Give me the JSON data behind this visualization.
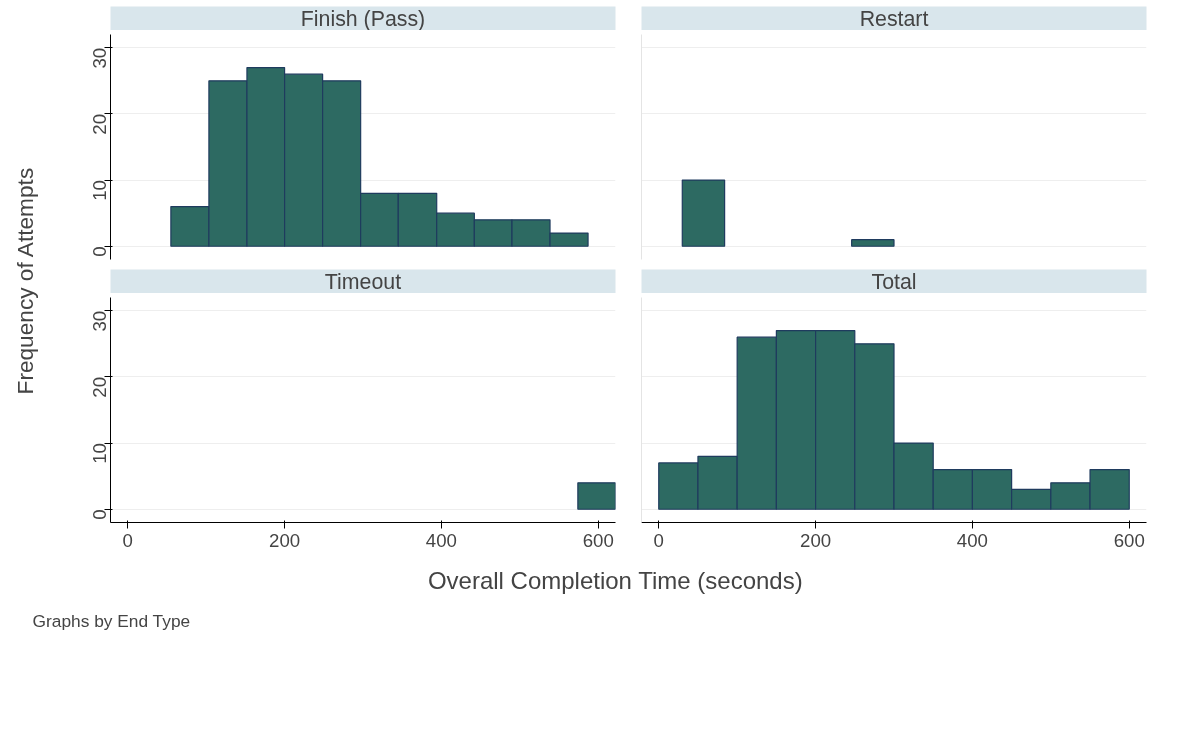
{
  "chart_data": [
    {
      "type": "histogram",
      "title": "Finish (Pass)",
      "ylabel": "Frequency of Attempts",
      "bins": [
        55,
        103.5,
        152,
        200,
        248.5,
        297,
        345,
        394,
        442,
        490,
        538.5,
        587
      ],
      "values": [
        6,
        25,
        27,
        26,
        25,
        8,
        8,
        5,
        4,
        4,
        2
      ],
      "color": "#2d6a62",
      "xlim": [
        -22,
        622
      ],
      "ylim": [
        -2,
        32
      ],
      "yticks": [
        0,
        10,
        20,
        30
      ],
      "grid": "y",
      "tick_labels": "y"
    },
    {
      "type": "histogram",
      "title": "Restart",
      "bins": [
        30,
        84,
        138,
        192,
        246,
        300
      ],
      "values": [
        10,
        0,
        0,
        0,
        1
      ],
      "color": "#2d6a62",
      "xlim": [
        -22,
        622
      ],
      "ylim": [
        -2,
        32
      ],
      "yticks": [
        0,
        10,
        20,
        30
      ],
      "grid": "y",
      "tick_labels": false
    },
    {
      "type": "histogram",
      "title": "Timeout",
      "bins": [
        574,
        622
      ],
      "values": [
        4
      ],
      "color": "#2d6a62",
      "xlim": [
        -22,
        622
      ],
      "ylim": [
        -2,
        32
      ],
      "xticks": [
        0,
        200,
        400,
        600
      ],
      "yticks": [
        0,
        10,
        20,
        30
      ],
      "grid": "y"
    },
    {
      "type": "histogram",
      "title": "Total",
      "xlabel": "Overall Completion Time (seconds)",
      "annotations": [
        "Graphs by End Type"
      ],
      "bins": [
        0,
        50,
        100,
        150,
        200,
        250,
        300,
        350,
        400,
        450,
        500,
        550,
        600
      ],
      "values": [
        7,
        8,
        26,
        27,
        27,
        25,
        10,
        6,
        6,
        3,
        4,
        6
      ],
      "color": "#2d6a62",
      "xlim": [
        -22,
        622
      ],
      "ylim": [
        -2,
        32
      ],
      "xticks": [
        0,
        200,
        400,
        600
      ],
      "grid": "y",
      "tick_labels": "x"
    }
  ]
}
